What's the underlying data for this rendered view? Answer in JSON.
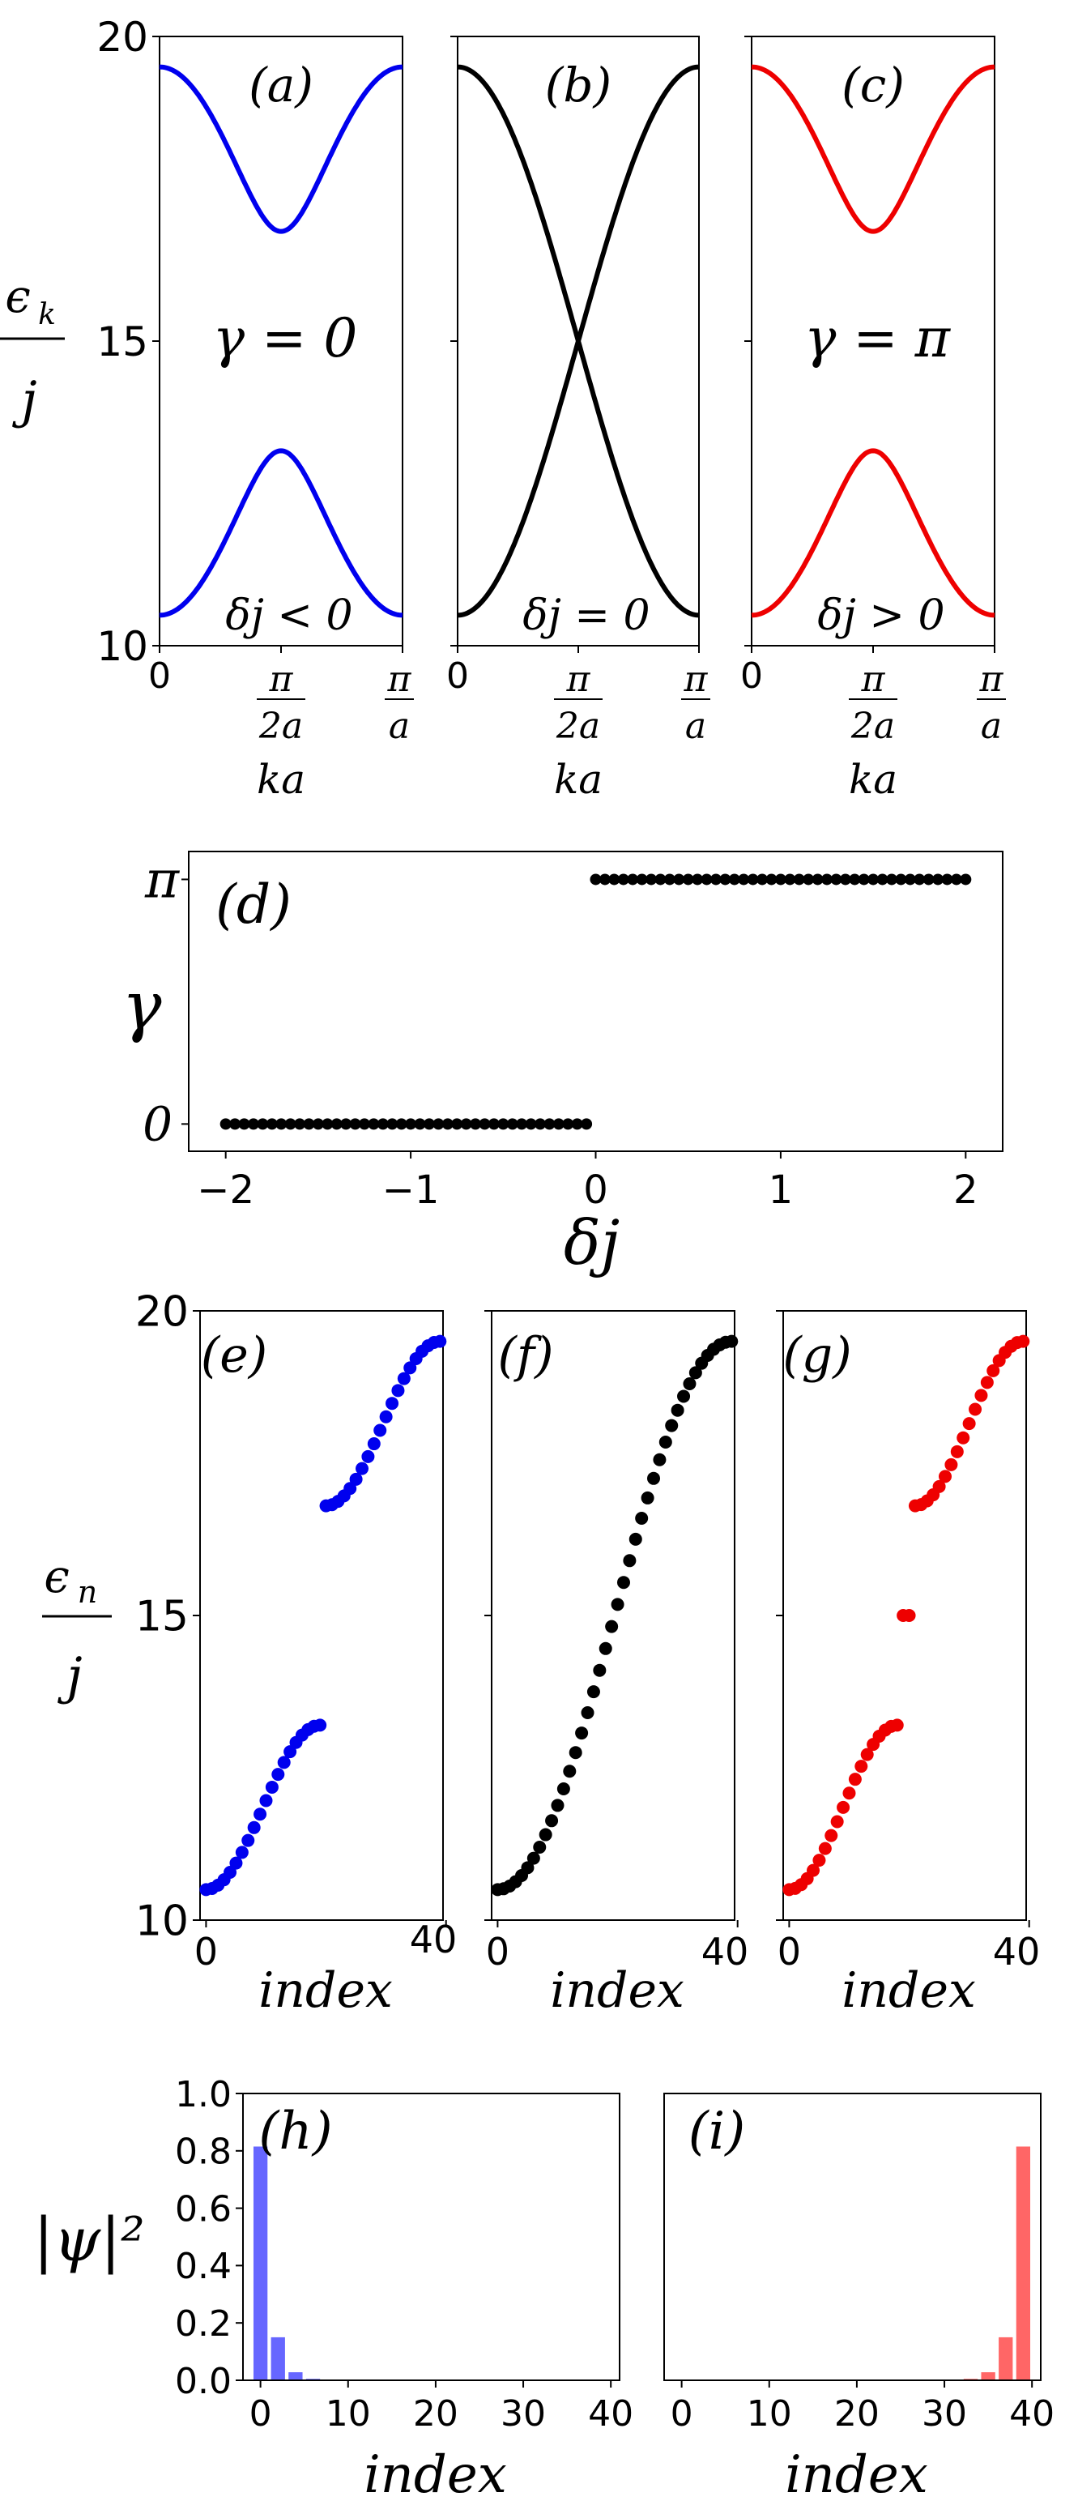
{
  "chart_data": [
    {
      "id": "a",
      "type": "line",
      "panel_label": "(a)",
      "annotation": "γ = 0",
      "annotation2": "δj < 0",
      "color": "#0000ee",
      "xlabel": "ka",
      "xticks": [
        {
          "value": 0,
          "label": "0"
        },
        {
          "value": 1.5708,
          "label": "π/2a"
        },
        {
          "value": 3.1416,
          "label": "π/a"
        }
      ],
      "ylabel": "εk/j",
      "yticks": [
        {
          "value": 10,
          "label": "10"
        },
        {
          "value": 15,
          "label": "15"
        },
        {
          "value": 20,
          "label": "20"
        }
      ],
      "xlim": [
        0,
        3.1416
      ],
      "ylim": [
        10,
        20
      ],
      "bands": {
        "center": 15,
        "outer": 4.5,
        "inner": 1.8,
        "k_min": 0,
        "k_max": 3.1416
      }
    },
    {
      "id": "b",
      "type": "line",
      "panel_label": "(b)",
      "annotation": "",
      "annotation2": "δj = 0",
      "color": "#000000",
      "xlabel": "ka",
      "xticks": [
        {
          "value": 0,
          "label": "0"
        },
        {
          "value": 1.5708,
          "label": "π/2a"
        },
        {
          "value": 3.1416,
          "label": "π/a"
        }
      ],
      "xlim": [
        0,
        3.1416
      ],
      "ylim": [
        10,
        20
      ],
      "bands": {
        "center": 15,
        "outer": 4.5,
        "inner": 0,
        "k_min": 0,
        "k_max": 3.1416
      }
    },
    {
      "id": "c",
      "type": "line",
      "panel_label": "(c)",
      "annotation": "γ = π",
      "annotation2": "δj > 0",
      "color": "#ee0000",
      "xlabel": "ka",
      "xticks": [
        {
          "value": 0,
          "label": "0"
        },
        {
          "value": 1.5708,
          "label": "π/2a"
        },
        {
          "value": 3.1416,
          "label": "π/a"
        }
      ],
      "xlim": [
        0,
        3.1416
      ],
      "ylim": [
        10,
        20
      ],
      "bands": {
        "center": 15,
        "outer": 4.5,
        "inner": 1.8,
        "k_min": 0,
        "k_max": 3.1416
      }
    },
    {
      "id": "d",
      "type": "scatter",
      "panel_label": "(d)",
      "color": "#000000",
      "xlabel": "δj",
      "ylabel": "γ",
      "xticks": [
        {
          "value": -2,
          "label": "−2"
        },
        {
          "value": -1,
          "label": "−1"
        },
        {
          "value": 0,
          "label": "0"
        },
        {
          "value": 1,
          "label": "1"
        },
        {
          "value": 2,
          "label": "2"
        }
      ],
      "yticks": [
        {
          "value": 0,
          "label": "0"
        },
        {
          "value": 3.1416,
          "label": "π"
        }
      ],
      "xlim": [
        -2.2,
        2.2
      ],
      "ylim": [
        -0.35,
        3.5
      ],
      "series": [
        {
          "x_start": -2.0,
          "x_end": -0.05,
          "x_step": 0.05,
          "y": 0
        },
        {
          "x_start": 0.0,
          "x_end": 2.0,
          "x_step": 0.05,
          "y": 3.1416
        }
      ]
    },
    {
      "id": "e",
      "type": "scatter",
      "panel_label": "(e)",
      "color": "#0000ee",
      "xlabel": "index",
      "ylabel": "εn/j",
      "xticks": [
        {
          "value": 0,
          "label": "0"
        },
        {
          "value": 40,
          "label": "40"
        }
      ],
      "yticks": [
        {
          "value": 10,
          "label": "10"
        },
        {
          "value": 15,
          "label": "15"
        },
        {
          "value": 20,
          "label": "20"
        }
      ],
      "xlim": [
        -1,
        39.5
      ],
      "ylim": [
        10,
        20
      ],
      "spectrum": {
        "lower": [
          0,
          19,
          10.5,
          13.2
        ],
        "upper": [
          20,
          39,
          16.8,
          19.5
        ],
        "edge": []
      }
    },
    {
      "id": "f",
      "type": "scatter",
      "panel_label": "(f)",
      "color": "#000000",
      "xlabel": "index",
      "xticks": [
        {
          "value": 0,
          "label": "0"
        },
        {
          "value": 40,
          "label": "40"
        }
      ],
      "xlim": [
        -1,
        39.5
      ],
      "ylim": [
        10,
        20
      ],
      "spectrum": {
        "lower": [
          0,
          39,
          10.5,
          19.5
        ],
        "upper": [],
        "edge": []
      }
    },
    {
      "id": "g",
      "type": "scatter",
      "panel_label": "(g)",
      "color": "#ee0000",
      "xlabel": "index",
      "xticks": [
        {
          "value": 0,
          "label": "0"
        },
        {
          "value": 40,
          "label": "40"
        }
      ],
      "xlim": [
        -1,
        39.5
      ],
      "ylim": [
        10,
        20
      ],
      "spectrum": {
        "lower": [
          0,
          18,
          10.5,
          13.2
        ],
        "upper": [
          21,
          39,
          16.8,
          19.5
        ],
        "edge": [
          [
            19,
            15.0
          ],
          [
            20,
            15.0
          ]
        ]
      }
    },
    {
      "id": "h",
      "type": "bar",
      "panel_label": "(h)",
      "color": "#6666ff",
      "xlabel": "index",
      "ylabel": "|ψ|²",
      "xticks": [
        {
          "value": 0,
          "label": "0"
        },
        {
          "value": 10,
          "label": "10"
        },
        {
          "value": 20,
          "label": "20"
        },
        {
          "value": 30,
          "label": "30"
        },
        {
          "value": 40,
          "label": "40"
        }
      ],
      "yticks": [
        {
          "value": 0,
          "label": "0.0"
        },
        {
          "value": 0.2,
          "label": "0.2"
        },
        {
          "value": 0.4,
          "label": "0.4"
        },
        {
          "value": 0.6,
          "label": "0.6"
        },
        {
          "value": 0.8,
          "label": "0.8"
        },
        {
          "value": 1.0,
          "label": "1.0"
        }
      ],
      "xlim": [
        -2,
        41
      ],
      "ylim": [
        0,
        1.0
      ],
      "bars": [
        {
          "x": 0,
          "y": 0.815
        },
        {
          "x": 2,
          "y": 0.15
        },
        {
          "x": 4,
          "y": 0.028
        },
        {
          "x": 6,
          "y": 0.005
        }
      ]
    },
    {
      "id": "i",
      "type": "bar",
      "panel_label": "(i)",
      "color": "#ff6666",
      "xlabel": "index",
      "xticks": [
        {
          "value": 0,
          "label": "0"
        },
        {
          "value": 10,
          "label": "10"
        },
        {
          "value": 20,
          "label": "20"
        },
        {
          "value": 30,
          "label": "30"
        },
        {
          "value": 40,
          "label": "40"
        }
      ],
      "xlim": [
        -2,
        41
      ],
      "ylim": [
        0,
        1.0
      ],
      "bars": [
        {
          "x": 33,
          "y": 0.005
        },
        {
          "x": 35,
          "y": 0.028
        },
        {
          "x": 37,
          "y": 0.15
        },
        {
          "x": 39,
          "y": 0.815
        }
      ]
    }
  ]
}
